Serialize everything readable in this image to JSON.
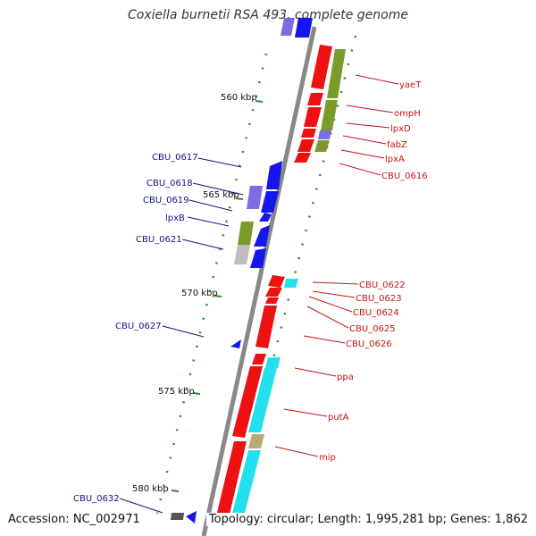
{
  "title": "Coxiella burnetii RSA 493, complete genome",
  "footer": {
    "accession": "Accession: NC_002971",
    "stats": "Topology: circular; Length: 1,995,281 bp; Genes: 1,862"
  },
  "colors": {
    "backbone": "#888888",
    "forward_gene": "#ee1111",
    "reverse_gene": "#1515ee",
    "forward_label": "#cc1111",
    "reverse_label": "#11118f",
    "tick": "#2e8b2e",
    "cyan_feature": "#22e0ee",
    "olive_feature": "#7a9a2a",
    "tan_feature": "#b5ab72",
    "violet_feature": "#7c6ee0",
    "grey_feature": "#bdbdbd"
  },
  "scale_ticks": [
    "560 kbp",
    "565 kbp",
    "570 kbp",
    "575 kbp",
    "580 kbp"
  ],
  "forward_labels": [
    "yaeT",
    "ompH",
    "lpxD",
    "fabZ",
    "lpxA",
    "CBU_0616",
    "CBU_0622",
    "CBU_0623",
    "CBU_0624",
    "CBU_0625",
    "CBU_0626",
    "ppa",
    "putA",
    "mip"
  ],
  "reverse_labels": [
    "CBU_0617",
    "CBU_0618",
    "CBU_0619",
    "lpxB",
    "CBU_0621",
    "CBU_0627",
    "CBU_0632"
  ]
}
